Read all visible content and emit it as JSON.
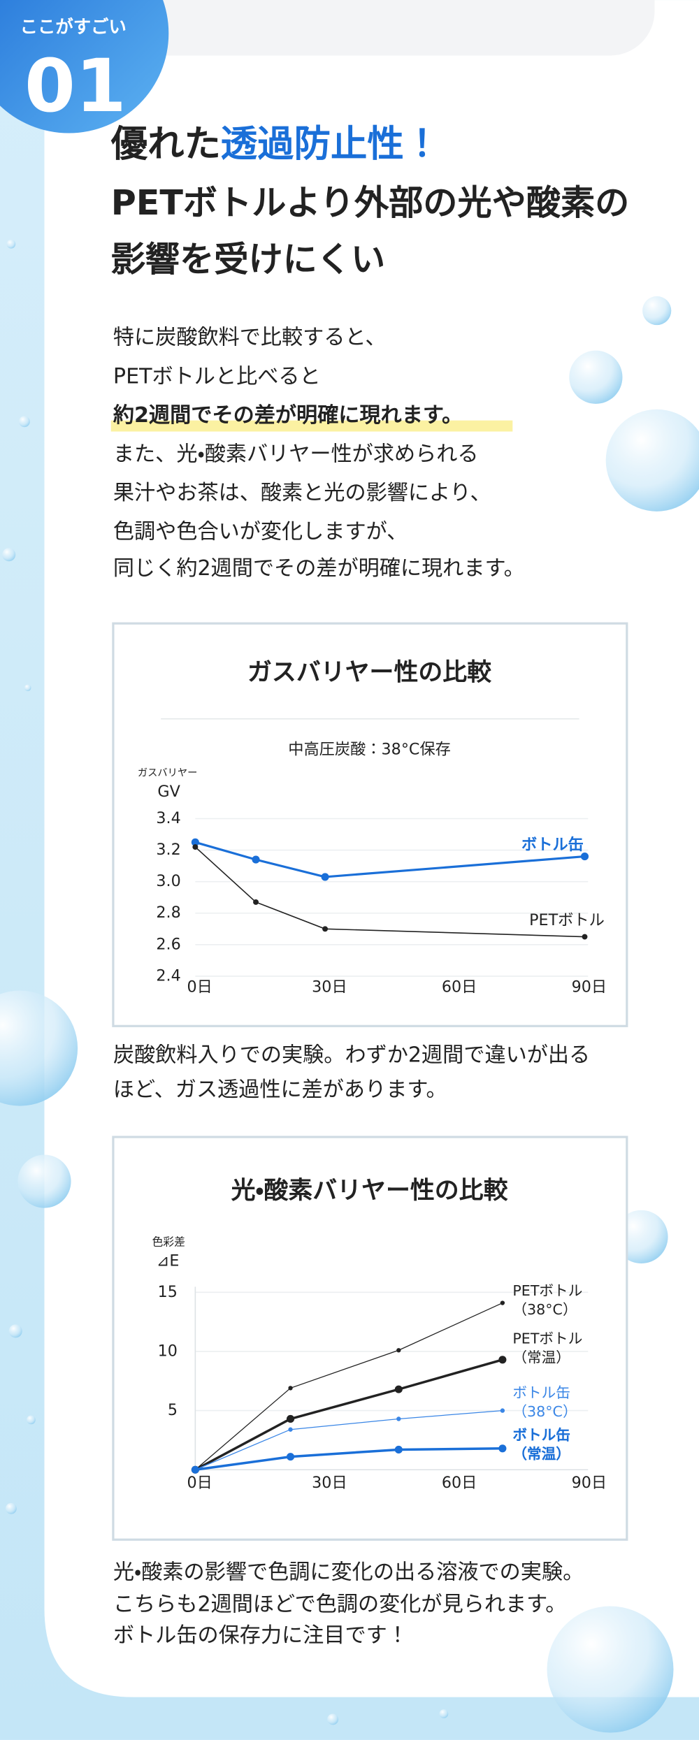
{
  "badge": {
    "label": "ここがすごい",
    "number": "01"
  },
  "heading": {
    "line1_plain": "優れた",
    "line1_accent": "透過防止性！",
    "line2": "PETボトルより外部の光や酸素の",
    "line3": "影響を受けにくい"
  },
  "body": [
    "特に炭酸飲料で比較すると、",
    "PETボトルと比べると",
    "約2週間でその差が明確に現れます。",
    "また、光・酸素バリヤー性が求められる",
    "果汁やお茶は、酸素と光の影響により、",
    "色調や色合いが変化しますが、",
    "同じく約2週間でその差が明確に現れます。"
  ],
  "chart_data": [
    {
      "type": "line",
      "title": "ガスバリヤー性の比較",
      "subtitle": "中高圧炭酸：38°C保存",
      "ylabel_caption": "ガスバリヤー",
      "ylabel": "GV",
      "x": [
        0,
        14,
        30,
        90
      ],
      "xlim": [
        0,
        90
      ],
      "xticks": [
        {
          "value": 0,
          "label": "0日"
        },
        {
          "value": 30,
          "label": "30日"
        },
        {
          "value": 60,
          "label": "60日"
        },
        {
          "value": 90,
          "label": "90日"
        }
      ],
      "ylim": [
        2.4,
        3.4
      ],
      "yticks": [
        2.4,
        2.6,
        2.8,
        {
          "value": 3,
          "label": "3.0"
        },
        3.2,
        3.4
      ],
      "grid": true,
      "series": [
        {
          "name": "ボトル缶",
          "color": "#1a6fd8",
          "values": [
            3.25,
            3.14,
            3.03,
            3.16
          ]
        },
        {
          "name": "PETボトル",
          "color": "#222222",
          "values": [
            3.22,
            2.87,
            2.7,
            2.65
          ]
        }
      ]
    },
    {
      "type": "line",
      "title": "光・酸素バリヤー性の比較",
      "ylabel_caption": "色彩差",
      "ylabel": "⊿E",
      "x": [
        0,
        22,
        47,
        71
      ],
      "xlim": [
        0,
        90
      ],
      "xticks": [
        {
          "value": 0,
          "label": "0日"
        },
        {
          "value": 30,
          "label": "30日"
        },
        {
          "value": 60,
          "label": "60日"
        },
        {
          "value": 90,
          "label": "90日"
        }
      ],
      "ylim": [
        0,
        15
      ],
      "yticks": [
        5,
        10,
        15
      ],
      "grid": true,
      "series": [
        {
          "name": "PETボトル\n（38°C）",
          "color": "#222222",
          "values": [
            0,
            6.9,
            10.1,
            14.1
          ]
        },
        {
          "name": "PETボトル\n（常温）",
          "color": "#222222",
          "values": [
            0,
            4.3,
            6.8,
            9.3
          ]
        },
        {
          "name": "ボトル缶\n（38°C）",
          "color": "#3a86e6",
          "values": [
            0,
            3.4,
            4.3,
            5.0
          ]
        },
        {
          "name": "ボトル缶\n（常温）",
          "color": "#1a6fd8",
          "values": [
            0,
            1.1,
            1.7,
            1.8
          ]
        }
      ]
    }
  ],
  "captions": [
    [
      "炭酸飲料入りでの実験。わずか2週間で違いが出る",
      "ほど、ガス透過性に差があります。"
    ],
    [
      "光・酸素の影響で色調に変化の出る溶液での実験。",
      "こちらも2週間ほどで色調の変化が見られます。",
      "ボトル缶の保存力に注目です！"
    ]
  ]
}
